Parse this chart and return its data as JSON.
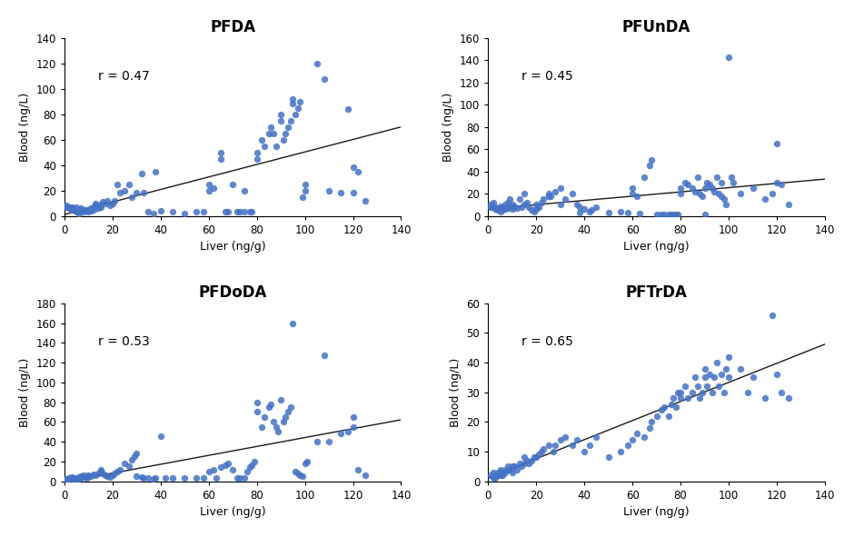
{
  "panels": [
    {
      "title": "PFDA",
      "r_value": "r = 0.47",
      "xlabel": "Liver (ng/g)",
      "ylabel": "Blood (ng/L)",
      "xlim": [
        0,
        140
      ],
      "ylim": [
        0,
        140
      ],
      "yticks": [
        0,
        20,
        40,
        60,
        80,
        100,
        120,
        140
      ],
      "xticks": [
        0,
        20,
        40,
        60,
        80,
        100,
        120,
        140
      ],
      "liver": [
        1,
        1,
        2,
        2,
        3,
        3,
        3,
        4,
        4,
        5,
        5,
        5,
        5,
        6,
        6,
        7,
        7,
        8,
        8,
        9,
        9,
        10,
        10,
        11,
        11,
        12,
        12,
        13,
        13,
        14,
        14,
        15,
        15,
        16,
        17,
        18,
        19,
        20,
        21,
        22,
        23,
        25,
        27,
        28,
        30,
        32,
        33,
        35,
        37,
        38,
        40,
        45,
        50,
        55,
        58,
        60,
        60,
        62,
        65,
        65,
        67,
        68,
        70,
        72,
        73,
        75,
        75,
        77,
        78,
        80,
        80,
        82,
        83,
        85,
        86,
        87,
        88,
        90,
        90,
        91,
        92,
        93,
        94,
        95,
        95,
        96,
        97,
        98,
        99,
        100,
        100,
        105,
        108,
        110,
        115,
        118,
        120,
        120,
        122,
        125
      ],
      "blood": [
        8,
        7,
        6,
        7,
        5,
        6,
        7,
        5,
        6,
        3,
        4,
        5,
        7,
        2,
        4,
        5,
        6,
        3,
        5,
        4,
        5,
        3,
        5,
        4,
        6,
        5,
        7,
        8,
        10,
        6,
        8,
        7,
        9,
        11,
        10,
        12,
        8,
        10,
        12,
        25,
        18,
        20,
        25,
        15,
        18,
        33,
        18,
        3,
        2,
        35,
        4,
        3,
        2,
        3,
        3,
        20,
        25,
        22,
        45,
        50,
        3,
        3,
        25,
        3,
        3,
        3,
        20,
        3,
        3,
        45,
        50,
        60,
        55,
        65,
        70,
        65,
        55,
        75,
        80,
        60,
        65,
        70,
        75,
        92,
        88,
        80,
        85,
        90,
        15,
        20,
        25,
        120,
        108,
        20,
        18,
        84,
        38,
        18,
        35,
        12
      ]
    },
    {
      "title": "PFUnDA",
      "r_value": "r = 0.45",
      "xlabel": "Liver (ng/g)",
      "ylabel": "Blood (ng/L)",
      "xlim": [
        0,
        140
      ],
      "ylim": [
        0,
        160
      ],
      "yticks": [
        0,
        20,
        40,
        60,
        80,
        100,
        120,
        140,
        160
      ],
      "xticks": [
        0,
        20,
        40,
        60,
        80,
        100,
        120,
        140
      ],
      "liver": [
        1,
        1,
        2,
        2,
        3,
        3,
        4,
        4,
        5,
        5,
        6,
        6,
        7,
        7,
        8,
        8,
        9,
        9,
        10,
        10,
        11,
        12,
        13,
        14,
        15,
        15,
        16,
        17,
        18,
        19,
        20,
        20,
        21,
        22,
        23,
        25,
        25,
        26,
        28,
        30,
        30,
        32,
        35,
        37,
        38,
        38,
        40,
        42,
        43,
        45,
        50,
        55,
        58,
        60,
        60,
        62,
        63,
        65,
        67,
        68,
        70,
        72,
        73,
        75,
        76,
        77,
        78,
        79,
        80,
        80,
        82,
        83,
        85,
        86,
        87,
        88,
        89,
        90,
        90,
        91,
        92,
        93,
        94,
        95,
        96,
        97,
        97,
        98,
        99,
        100,
        101,
        102,
        105,
        110,
        115,
        118,
        120,
        120,
        122,
        125
      ],
      "blood": [
        10,
        8,
        8,
        12,
        6,
        8,
        5,
        7,
        4,
        9,
        5,
        8,
        6,
        10,
        7,
        12,
        8,
        15,
        6,
        10,
        9,
        7,
        15,
        8,
        10,
        20,
        12,
        8,
        5,
        4,
        6,
        10,
        8,
        12,
        15,
        20,
        18,
        18,
        22,
        25,
        10,
        15,
        20,
        10,
        8,
        3,
        6,
        4,
        5,
        8,
        3,
        4,
        3,
        20,
        25,
        18,
        2,
        35,
        45,
        50,
        1,
        1,
        1,
        1,
        1,
        1,
        1,
        1,
        25,
        20,
        30,
        28,
        25,
        22,
        35,
        20,
        18,
        1,
        25,
        30,
        28,
        25,
        22,
        35,
        20,
        18,
        30,
        15,
        10,
        143,
        35,
        30,
        20,
        25,
        15,
        20,
        65,
        30,
        28,
        10
      ]
    },
    {
      "title": "PFDoDA",
      "r_value": "r = 0.53",
      "xlabel": "Liver (ng/g)",
      "ylabel": "Blood (ng/L)",
      "xlim": [
        0,
        140
      ],
      "ylim": [
        0,
        180
      ],
      "yticks": [
        0,
        20,
        40,
        60,
        80,
        100,
        120,
        140,
        160,
        180
      ],
      "xticks": [
        0,
        20,
        40,
        60,
        80,
        100,
        120,
        140
      ],
      "liver": [
        1,
        1,
        2,
        2,
        3,
        3,
        3,
        4,
        4,
        5,
        5,
        5,
        6,
        6,
        7,
        7,
        8,
        8,
        9,
        9,
        10,
        10,
        11,
        12,
        13,
        14,
        15,
        15,
        16,
        17,
        18,
        19,
        20,
        21,
        22,
        23,
        25,
        27,
        28,
        29,
        30,
        30,
        32,
        33,
        35,
        37,
        38,
        40,
        42,
        45,
        50,
        55,
        58,
        60,
        62,
        63,
        65,
        67,
        68,
        70,
        72,
        73,
        75,
        76,
        77,
        78,
        79,
        80,
        80,
        82,
        83,
        85,
        86,
        87,
        88,
        89,
        90,
        91,
        92,
        93,
        94,
        95,
        96,
        97,
        98,
        99,
        100,
        101,
        105,
        108,
        110,
        115,
        118,
        120,
        120,
        122,
        125
      ],
      "blood": [
        2,
        1,
        2,
        3,
        2,
        3,
        4,
        2,
        3,
        1,
        2,
        3,
        2,
        4,
        3,
        5,
        4,
        6,
        3,
        5,
        4,
        6,
        5,
        7,
        6,
        8,
        10,
        12,
        8,
        6,
        5,
        4,
        6,
        8,
        10,
        12,
        18,
        15,
        22,
        25,
        28,
        5,
        4,
        3,
        3,
        2,
        3,
        46,
        3,
        3,
        3,
        3,
        3,
        10,
        12,
        3,
        14,
        16,
        18,
        12,
        3,
        3,
        3,
        10,
        14,
        16,
        20,
        80,
        70,
        55,
        65,
        75,
        78,
        60,
        55,
        50,
        82,
        60,
        65,
        70,
        75,
        160,
        10,
        8,
        6,
        5,
        18,
        20,
        40,
        127,
        40,
        48,
        50,
        55,
        65,
        12,
        6
      ]
    },
    {
      "title": "PFTrDA",
      "r_value": "r = 0.65",
      "xlabel": "Liver (ng/g)",
      "ylabel": "Blood (ng/L)",
      "xlim": [
        0,
        140
      ],
      "ylim": [
        0,
        60
      ],
      "yticks": [
        0,
        10,
        20,
        30,
        40,
        50,
        60
      ],
      "xticks": [
        0,
        20,
        40,
        60,
        80,
        100,
        120,
        140
      ],
      "liver": [
        1,
        2,
        2,
        3,
        3,
        4,
        4,
        5,
        5,
        5,
        6,
        6,
        7,
        7,
        8,
        8,
        9,
        10,
        10,
        11,
        12,
        13,
        14,
        15,
        15,
        16,
        17,
        18,
        19,
        20,
        21,
        22,
        23,
        25,
        27,
        28,
        30,
        32,
        35,
        37,
        40,
        42,
        45,
        50,
        55,
        58,
        60,
        62,
        65,
        67,
        68,
        70,
        72,
        73,
        75,
        76,
        77,
        78,
        79,
        80,
        80,
        82,
        83,
        85,
        86,
        87,
        88,
        89,
        90,
        90,
        91,
        92,
        93,
        94,
        95,
        96,
        97,
        98,
        99,
        100,
        100,
        105,
        108,
        110,
        115,
        118,
        120,
        122,
        125
      ],
      "blood": [
        2,
        1,
        3,
        1,
        2,
        2,
        3,
        2,
        3,
        4,
        2,
        3,
        3,
        4,
        4,
        5,
        4,
        3,
        5,
        5,
        4,
        6,
        5,
        6,
        8,
        7,
        6,
        7,
        8,
        8,
        9,
        10,
        11,
        12,
        10,
        12,
        14,
        15,
        12,
        14,
        10,
        12,
        15,
        8,
        10,
        12,
        14,
        16,
        15,
        18,
        20,
        22,
        24,
        25,
        22,
        26,
        28,
        25,
        30,
        28,
        30,
        32,
        28,
        30,
        35,
        32,
        28,
        30,
        35,
        38,
        32,
        36,
        30,
        35,
        40,
        32,
        36,
        30,
        38,
        35,
        42,
        38,
        30,
        35,
        28,
        56,
        36,
        30,
        28
      ]
    }
  ],
  "dot_color": "#4472C4",
  "dot_size": 28,
  "line_color": "#1a1a1a",
  "background_color": "#ffffff",
  "title_fontsize": 12,
  "label_fontsize": 9,
  "tick_fontsize": 8.5,
  "r_fontsize": 10,
  "r_pos": [
    0.1,
    0.82
  ]
}
